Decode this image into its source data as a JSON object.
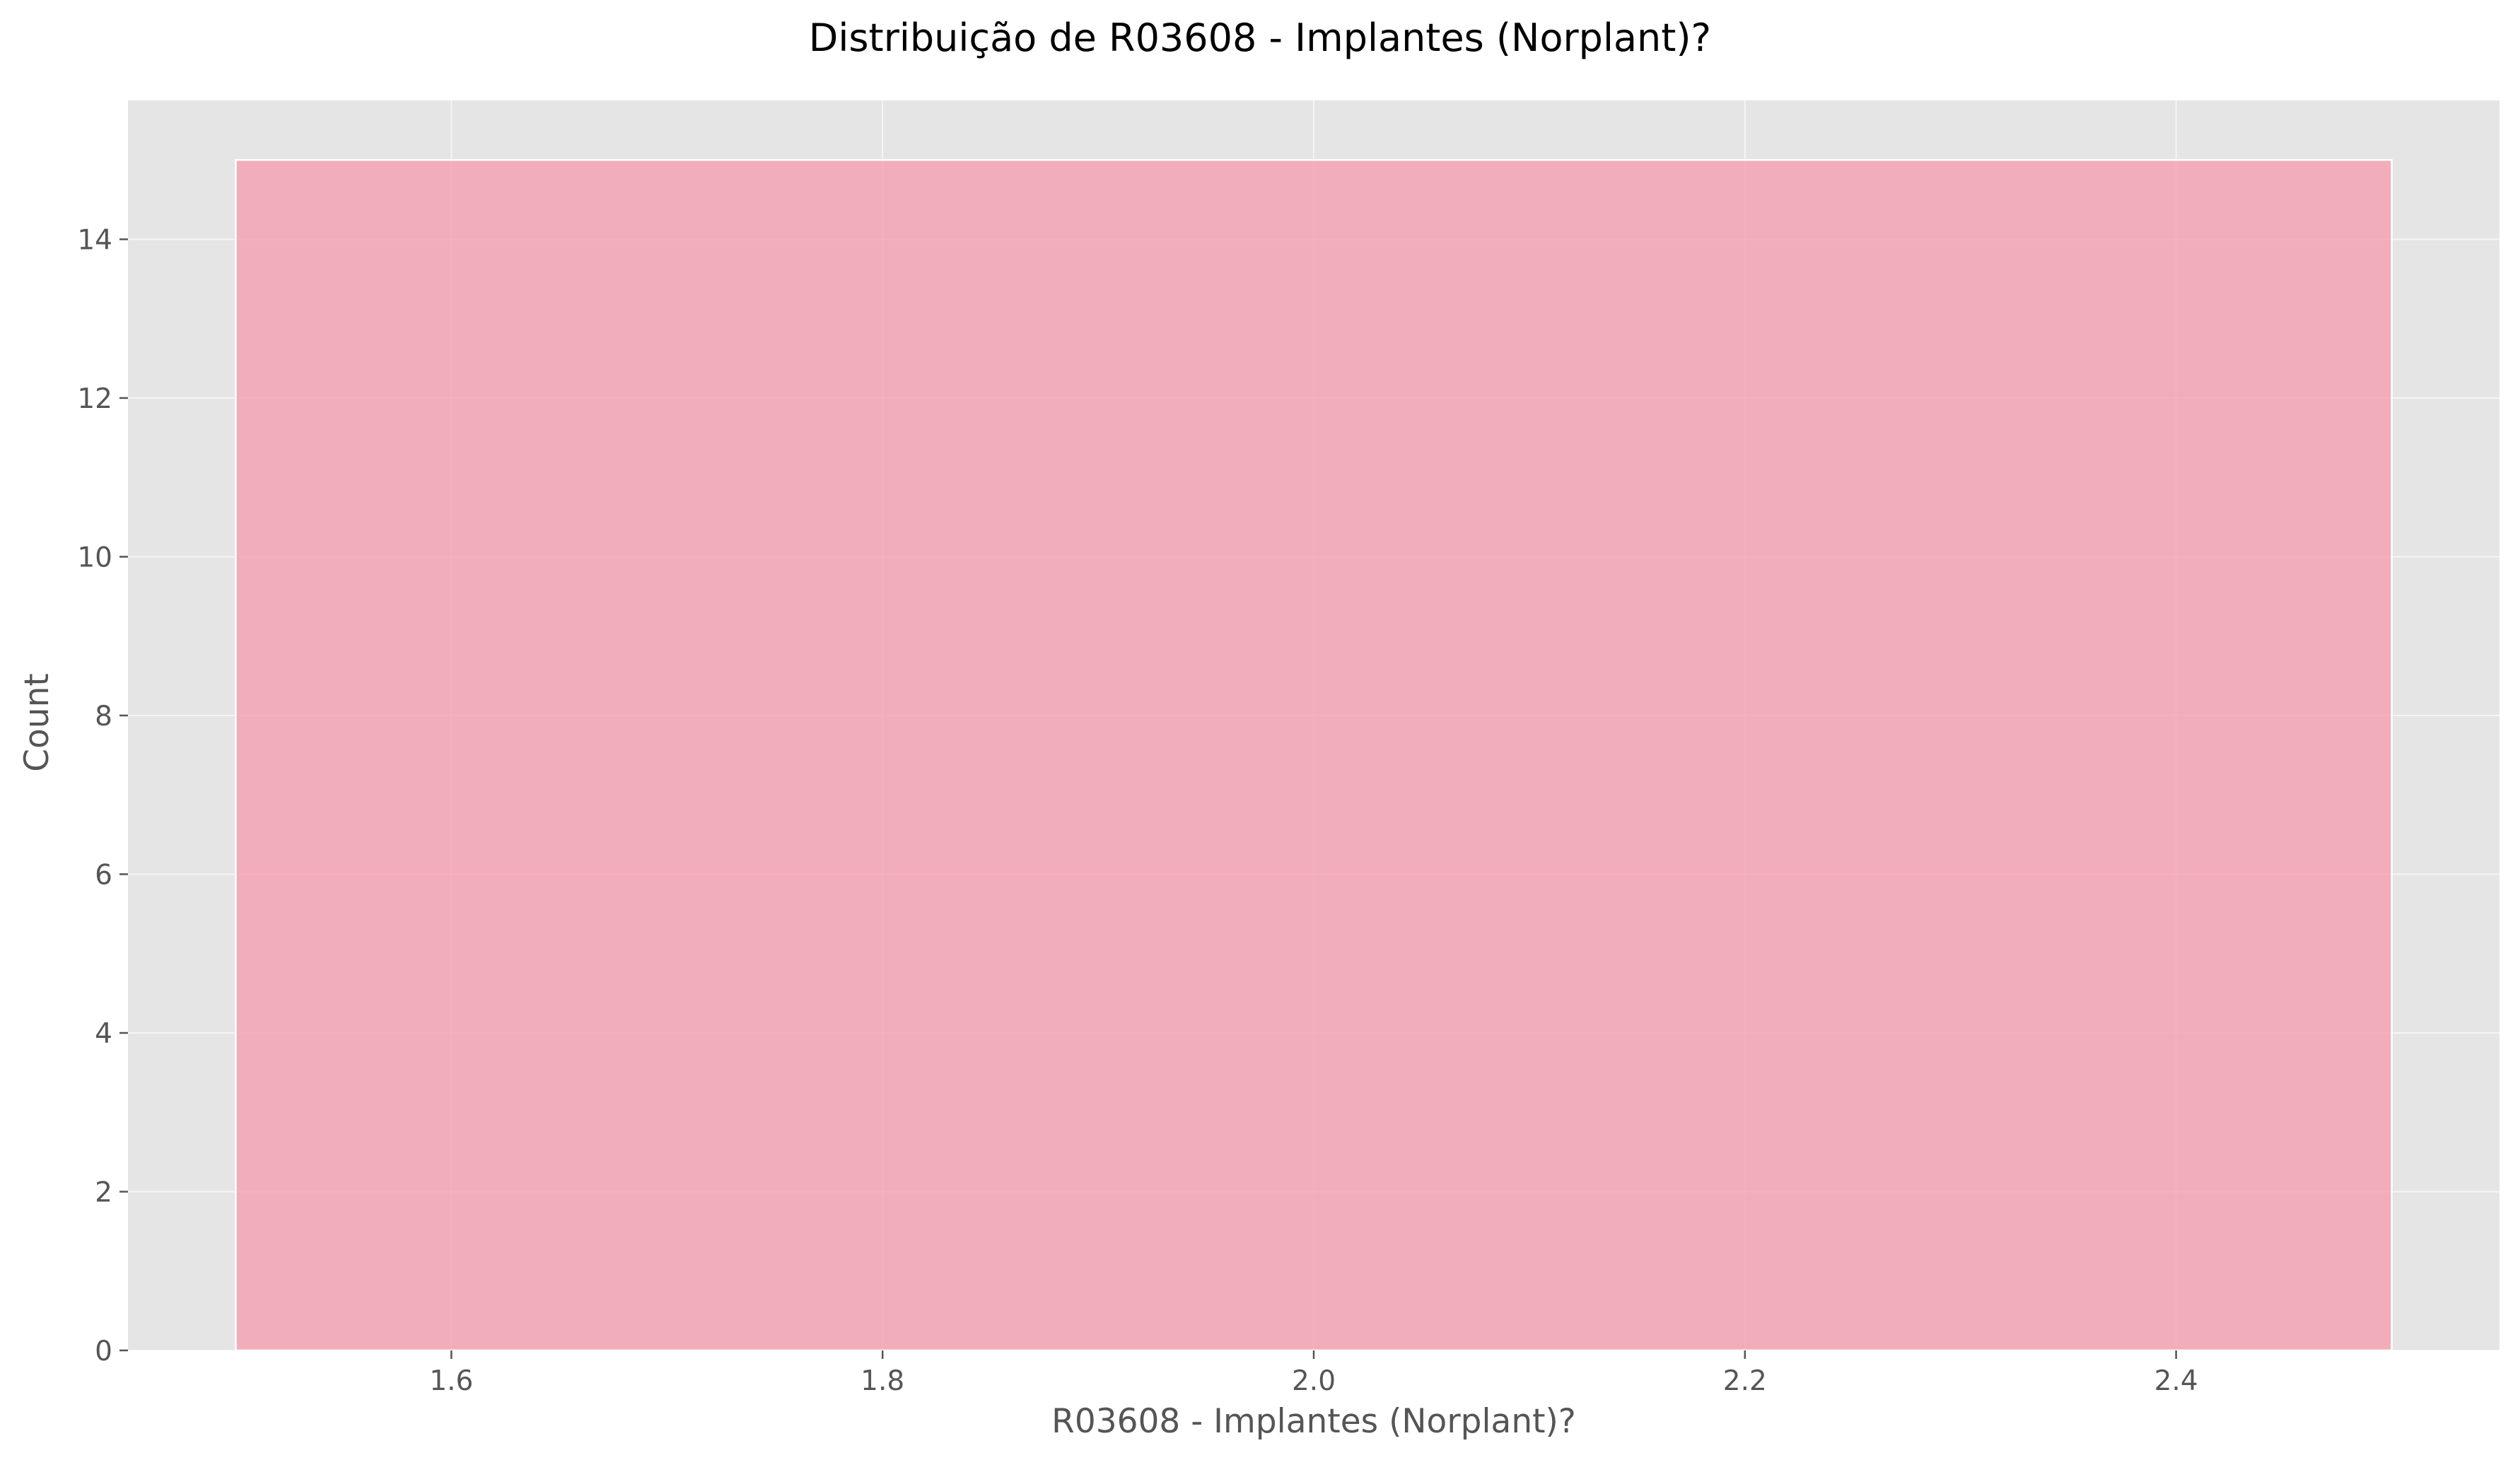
{
  "chart_data": {
    "type": "bar",
    "title": "Distribuição de R03608 - Implantes (Norplant)?",
    "xlabel": "R03608 - Implantes (Norplant)?",
    "ylabel": "Count",
    "bins": [
      {
        "x_start": 1.5,
        "x_end": 2.5,
        "count": 15
      }
    ],
    "xlim": [
      1.45,
      2.55
    ],
    "ylim": [
      0,
      15.75
    ],
    "x_ticks": [
      1.6,
      1.8,
      2.0,
      2.2,
      2.4
    ],
    "x_tick_labels": [
      "1.6",
      "1.8",
      "2.0",
      "2.2",
      "2.4"
    ],
    "y_ticks": [
      0,
      2,
      4,
      6,
      8,
      10,
      12,
      14
    ],
    "y_tick_labels": [
      "0",
      "2",
      "4",
      "6",
      "8",
      "10",
      "12",
      "14"
    ],
    "grid": true,
    "colors": {
      "plot_background": "#e5e5e5",
      "bar_fill": "#f4a3b4",
      "bar_edge": "#ffffff"
    }
  }
}
